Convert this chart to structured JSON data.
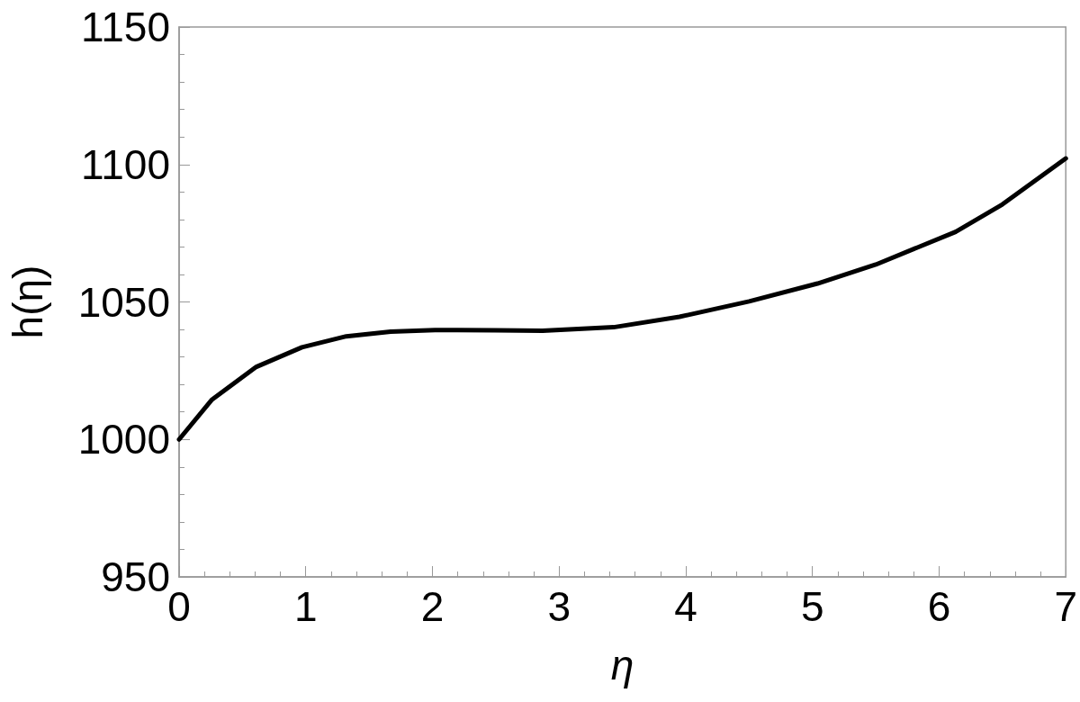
{
  "chart_data": {
    "type": "line",
    "xlabel": "η",
    "ylabel": "h(η)",
    "xlim": [
      0,
      7
    ],
    "xticks": [
      0,
      1,
      2,
      3,
      4,
      5,
      6,
      7
    ],
    "ylim": [
      950,
      1150
    ],
    "yticks": [
      950,
      1000,
      1050,
      1100,
      1150
    ],
    "grid": false,
    "marker": "none",
    "line_style": "solid",
    "series": [
      {
        "color": "#000000",
        "x": [
          0,
          0.26,
          0.61,
          0.97,
          1.32,
          1.67,
          2.02,
          2.5,
          2.87,
          3.43,
          3.95,
          4.5,
          5.04,
          5.5,
          6.13,
          6.5,
          7
        ],
        "values": [
          1000,
          1014.5,
          1026.4,
          1033.5,
          1037.5,
          1039.2,
          1039.8,
          1039.7,
          1039.5,
          1040.8,
          1044.6,
          1050.2,
          1056.7,
          1063.6,
          1075.5,
          1085.5,
          1102.2
        ]
      }
    ]
  }
}
